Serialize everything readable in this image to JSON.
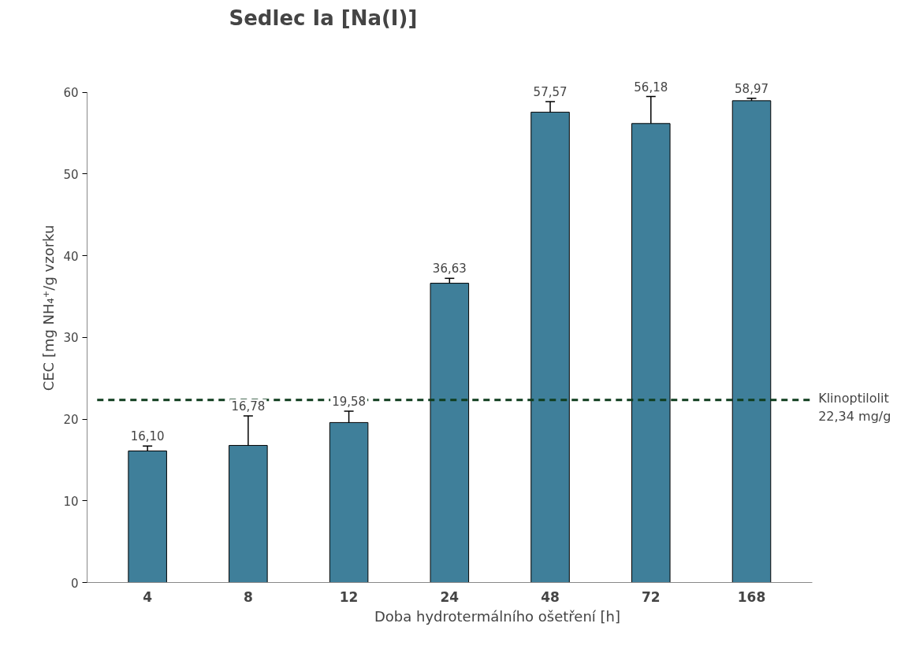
{
  "chart_data": {
    "type": "bar",
    "title": "Sedlec Ia [Na(I)]",
    "xlabel": "Doba hydrotermálního ošetření [h]",
    "ylabel": "CEC [mg NH₄⁺/g vzorku",
    "categories": [
      "4",
      "8",
      "12",
      "24",
      "48",
      "72",
      "168"
    ],
    "values": [
      16.1,
      16.78,
      19.58,
      36.63,
      57.57,
      56.18,
      58.97
    ],
    "value_labels": [
      "16,10",
      "16,78",
      "19,58",
      "36,63",
      "57,57",
      "56,18",
      "58,97"
    ],
    "errors": [
      0.6,
      3.6,
      1.4,
      0.6,
      1.3,
      3.3,
      0.3
    ],
    "color": "#3f7f9a",
    "ylim": [
      0,
      60
    ],
    "yticks": [
      0,
      10,
      20,
      30,
      40,
      50,
      60
    ],
    "grid": false,
    "ref_lines": [
      {
        "axis": "y",
        "value": 22.34,
        "label": "Klinoptilolit\n22,34 mg/g",
        "color": "#0f3d1e",
        "line_style": "dashed"
      }
    ]
  }
}
